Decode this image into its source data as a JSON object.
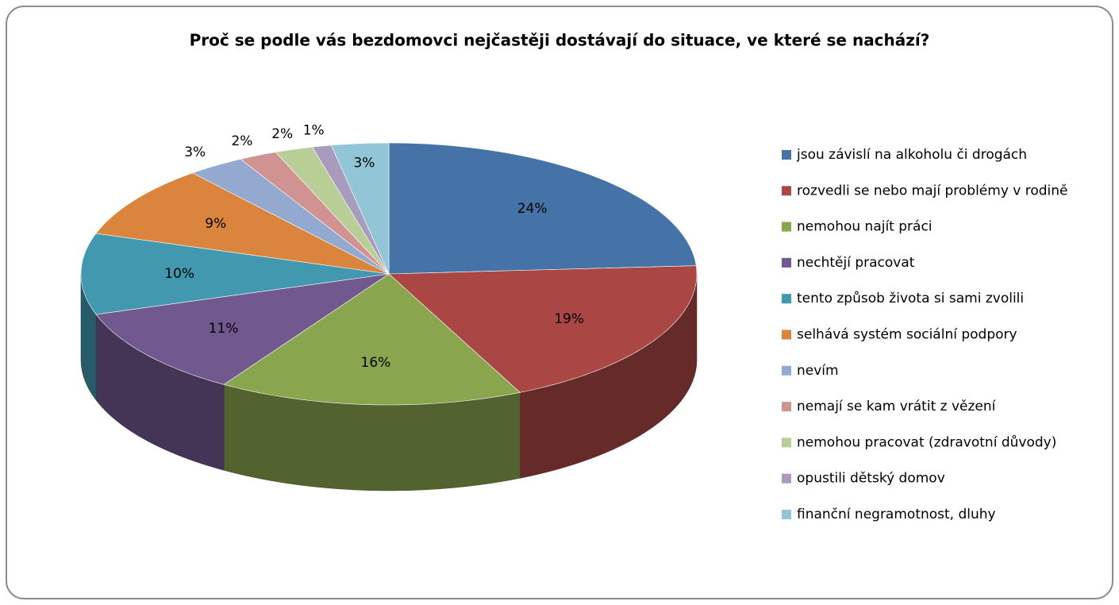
{
  "chart_data": {
    "type": "pie3d",
    "title": "Proč se podle vás bezdomovci nejčastěji dostávají do situace, ve které se nachází?",
    "categories": [
      "jsou závislí na alkoholu či drogách",
      "rozvedli se nebo mají problémy v rodině",
      "nemohou najít práci",
      "nechtějí pracovat",
      "tento způsob života si sami zvolili",
      "selhává systém sociální podpory",
      "nevím",
      "nemají se kam vrátit z vězení",
      "nemohou pracovat (zdravotní důvody)",
      "opustili dětský domov",
      "finanční negramotnost,  dluhy"
    ],
    "values": [
      24,
      19,
      16,
      11,
      10,
      9,
      3,
      2,
      2,
      1,
      3
    ],
    "value_labels": [
      "24%",
      "19%",
      "16%",
      "11%",
      "10%",
      "9%",
      "3%",
      "2%",
      "2%",
      "1%",
      "3%"
    ],
    "colors": [
      "#4572a7",
      "#aa4643",
      "#89a54e",
      "#71588f",
      "#4198af",
      "#db843d",
      "#93a9cf",
      "#d19392",
      "#b9cd96",
      "#a99bbd",
      "#92c5d6"
    ],
    "legend": "right"
  }
}
